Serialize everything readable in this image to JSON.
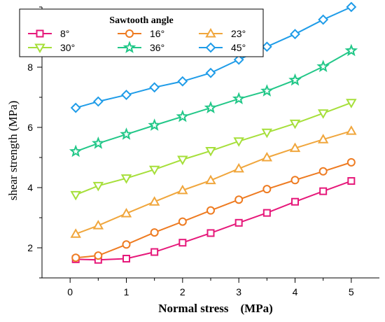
{
  "chart_data": {
    "type": "line",
    "xlabel": "Normal stress　(MPa)",
    "ylabel": "shear strength (MPa)",
    "xlim": [
      -0.5,
      5.5
    ],
    "ylim": [
      1.0,
      10.0
    ],
    "x_ticks": [
      0,
      0.5,
      1,
      1.5,
      2,
      2.5,
      3,
      3.5,
      4,
      4.5,
      5
    ],
    "x_tick_labels": [
      "0",
      "",
      "1",
      "",
      "2",
      "",
      "3",
      "",
      "4",
      "",
      "5"
    ],
    "y_ticks": [
      2,
      4,
      6,
      8
    ],
    "y_tick_labels": [
      "2",
      "4",
      "6",
      "8"
    ],
    "legend": {
      "title": "Sawtooth angle",
      "placement": "top-left",
      "columns": 3
    },
    "x": [
      0.1,
      0.5,
      1.0,
      1.5,
      2.0,
      2.5,
      3.0,
      3.5,
      4.0,
      4.5,
      5.0
    ],
    "series": [
      {
        "name": "8°",
        "color": "#e6187a",
        "marker": "square",
        "values": [
          1.62,
          1.6,
          1.64,
          1.86,
          2.17,
          2.49,
          2.83,
          3.16,
          3.53,
          3.88,
          4.22
        ]
      },
      {
        "name": "16°",
        "color": "#ee7b21",
        "marker": "circle",
        "values": [
          1.67,
          1.74,
          2.11,
          2.51,
          2.87,
          3.24,
          3.6,
          3.95,
          4.25,
          4.54,
          4.84
        ]
      },
      {
        "name": "23°",
        "color": "#f0a63c",
        "marker": "triangle-up",
        "values": [
          2.46,
          2.74,
          3.14,
          3.53,
          3.91,
          4.24,
          4.63,
          5.0,
          5.31,
          5.6,
          5.88
        ]
      },
      {
        "name": "30°",
        "color": "#a6df3a",
        "marker": "triangle-down",
        "values": [
          3.76,
          4.06,
          4.31,
          4.6,
          4.93,
          5.22,
          5.54,
          5.83,
          6.13,
          6.47,
          6.82
        ]
      },
      {
        "name": "36°",
        "color": "#22c788",
        "marker": "star",
        "values": [
          5.2,
          5.47,
          5.77,
          6.07,
          6.36,
          6.65,
          6.95,
          7.21,
          7.57,
          8.02,
          8.55
        ]
      },
      {
        "name": "45°",
        "color": "#1f9ce8",
        "marker": "diamond",
        "values": [
          6.65,
          6.86,
          7.08,
          7.33,
          7.53,
          7.81,
          8.25,
          8.68,
          9.1,
          9.58,
          10.0
        ]
      }
    ]
  }
}
